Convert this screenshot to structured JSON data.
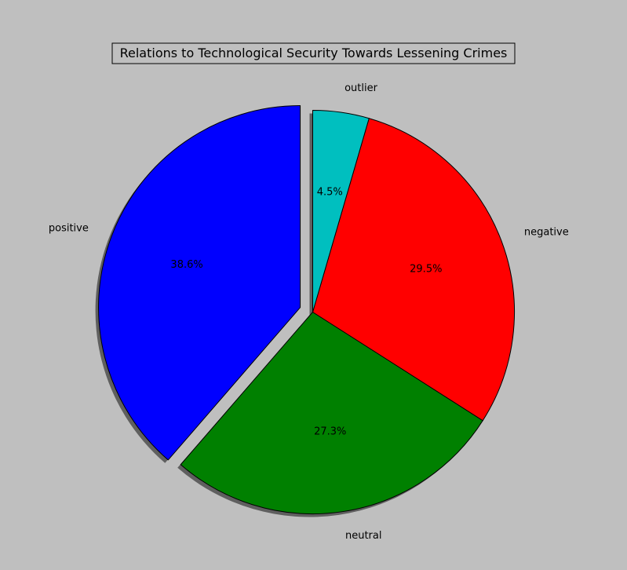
{
  "chart_data": {
    "type": "pie",
    "title": "Relations to Technological Security Towards Lessening Crimes",
    "categories": [
      "positive",
      "neutral",
      "negative",
      "outlier"
    ],
    "values": [
      38.6,
      27.3,
      29.5,
      4.5
    ],
    "value_labels": [
      "38.6%",
      "27.3%",
      "29.5%",
      "4.5%"
    ],
    "colors": [
      "#0000ff",
      "#008000",
      "#ff0000",
      "#00bfbf"
    ],
    "exploded": [
      "positive"
    ],
    "start_angle_deg": 90,
    "direction": "counterclockwise",
    "shadow": true,
    "legend": "none"
  },
  "colors": {
    "background": "#bfbfbf",
    "title_box": "#bfbfbf",
    "edge": "#000000"
  }
}
